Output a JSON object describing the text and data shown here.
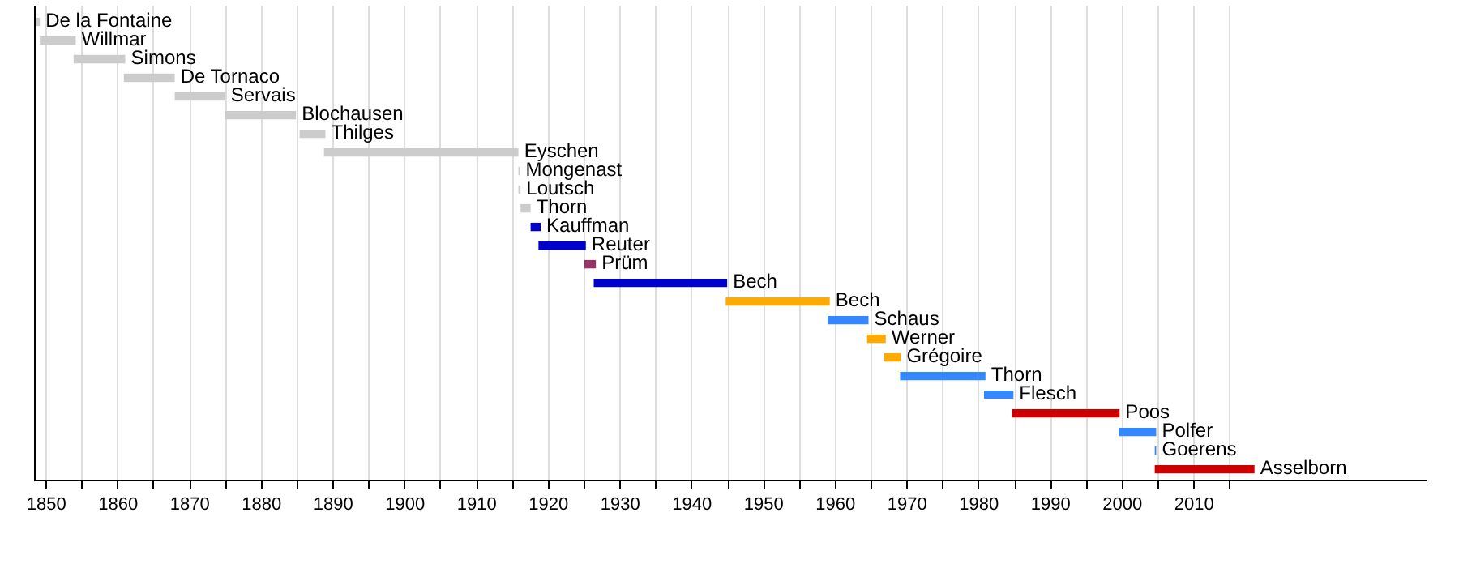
{
  "chart_data": {
    "type": "bar",
    "orientation": "horizontal",
    "tick_labels": "x",
    "grid": "x",
    "categories": [
      null,
      null,
      null,
      null,
      null,
      null,
      null,
      null,
      null,
      null,
      null,
      null,
      null,
      null,
      null,
      null,
      null,
      null,
      null,
      null,
      null,
      null,
      null,
      null,
      null
    ],
    "value_labels": [
      "De la Fontaine",
      "Willmar",
      "Simons",
      "De Tornaco",
      "Servais",
      "Blochausen",
      "Thilges",
      "Eyschen",
      "Mongenast",
      "Loutsch",
      "Thorn",
      "Kauffman",
      "Reuter",
      "Prüm",
      "Bech",
      "Bech",
      "Schaus",
      "Werner",
      "Grégoire",
      "Thorn",
      "Flesch",
      "Poos",
      "Polfer",
      "Goerens",
      "Asselborn"
    ],
    "base": [
      1848.6,
      1849.1,
      1853.8,
      1860.8,
      1867.9,
      1874.9,
      1885.3,
      1888.7,
      1915.8,
      1915.8,
      1916.1,
      1917.5,
      1918.6,
      1925.0,
      1926.3,
      1944.7,
      1958.9,
      1964.4,
      1966.8,
      1969.0,
      1980.7,
      1984.6,
      1999.5,
      2004.5,
      2004.5
    ],
    "values": [
      0.5,
      5.0,
      7.2,
      7.1,
      7.0,
      9.9,
      3.6,
      27.1,
      0.2,
      0.3,
      1.4,
      1.4,
      6.6,
      1.6,
      18.6,
      14.5,
      5.7,
      2.6,
      2.3,
      11.9,
      4.1,
      15.0,
      5.2,
      0.2,
      13.9
    ],
    "colors": [
      "#cccccc",
      "#cccccc",
      "#cccccc",
      "#cccccc",
      "#cccccc",
      "#cccccc",
      "#cccccc",
      "#cccccc",
      "#cccccc",
      "#cccccc",
      "#cccccc",
      "#0000cc",
      "#0000cc",
      "#993366",
      "#0000cc",
      "#ffaa00",
      "#3388ff",
      "#ffaa00",
      "#ffaa00",
      "#3388ff",
      "#3388ff",
      "#cc0000",
      "#3388ff",
      "#3388ff",
      "#cc0000"
    ],
    "xlim": [
      1848.4,
      2042.5
    ],
    "xticks": [
      1850,
      {
        "value": 1855,
        "label": null
      },
      1860,
      {
        "value": 1865,
        "label": null
      },
      1870,
      {
        "value": 1875,
        "label": null
      },
      1880,
      {
        "value": 1885,
        "label": null
      },
      1890,
      {
        "value": 1895,
        "label": null
      },
      1900,
      {
        "value": 1905,
        "label": null
      },
      1910,
      {
        "value": 1915,
        "label": null
      },
      1920,
      {
        "value": 1925,
        "label": null
      },
      1930,
      {
        "value": 1935,
        "label": null
      },
      1940,
      {
        "value": 1945,
        "label": null
      },
      1950,
      {
        "value": 1955,
        "label": null
      },
      1960,
      {
        "value": 1965,
        "label": null
      },
      1970,
      {
        "value": 1975,
        "label": null
      },
      1980,
      {
        "value": 1985,
        "label": null
      },
      1990,
      {
        "value": 1995,
        "label": null
      },
      2000,
      {
        "value": 2005,
        "label": null
      },
      2010,
      {
        "value": 2015,
        "label": null
      }
    ]
  }
}
